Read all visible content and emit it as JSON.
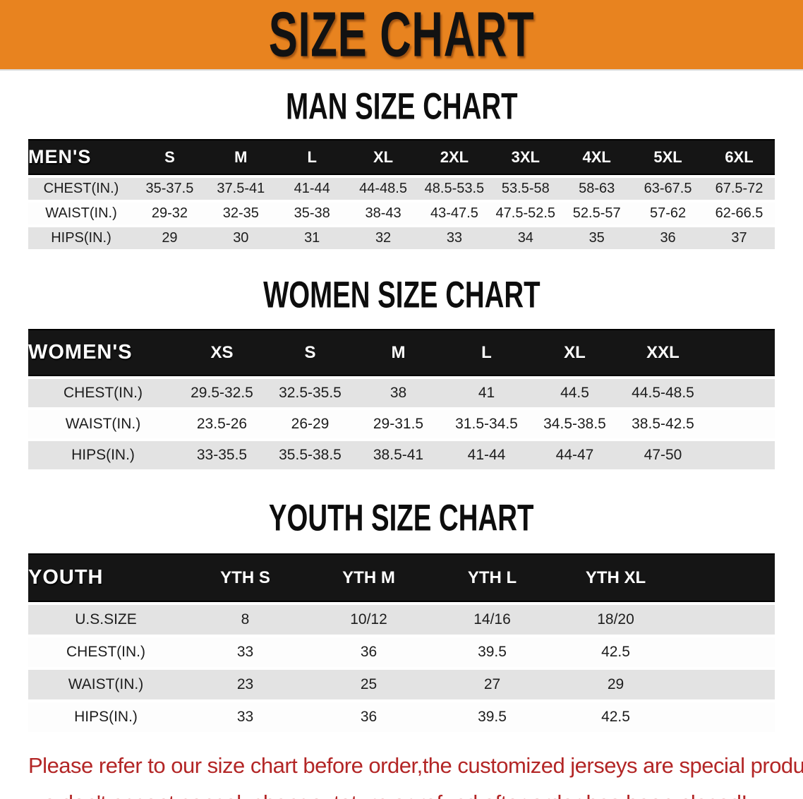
{
  "banner": {
    "title": "SIZE CHART",
    "bg_color": "#E8831F"
  },
  "men": {
    "heading": "MAN SIZE CHART",
    "label": "MEN'S",
    "columns": [
      "S",
      "M",
      "L",
      "XL",
      "2XL",
      "3XL",
      "4XL",
      "5XL",
      "6XL"
    ],
    "rows": [
      {
        "label": "CHEST(IN.)",
        "values": [
          "35-37.5",
          "37.5-41",
          "41-44",
          "44-48.5",
          "48.5-53.5",
          "53.5-58",
          "58-63",
          "63-67.5",
          "67.5-72"
        ]
      },
      {
        "label": "WAIST(IN.)",
        "values": [
          "29-32",
          "32-35",
          "35-38",
          "38-43",
          "43-47.5",
          "47.5-52.5",
          "52.5-57",
          "57-62",
          "62-66.5"
        ]
      },
      {
        "label": "HIPS(IN.)",
        "values": [
          "29",
          "30",
          "31",
          "32",
          "33",
          "34",
          "35",
          "36",
          "37"
        ]
      }
    ]
  },
  "women": {
    "heading": "WOMEN SIZE CHART",
    "label": "WOMEN'S",
    "columns": [
      "XS",
      "S",
      "M",
      "L",
      "XL",
      "XXL"
    ],
    "rows": [
      {
        "label": "CHEST(IN.)",
        "values": [
          "29.5-32.5",
          "32.5-35.5",
          "38",
          "41",
          "44.5",
          "44.5-48.5"
        ]
      },
      {
        "label": "WAIST(IN.)",
        "values": [
          "23.5-26",
          "26-29",
          "29-31.5",
          "31.5-34.5",
          "34.5-38.5",
          "38.5-42.5"
        ]
      },
      {
        "label": "HIPS(IN.)",
        "values": [
          "33-35.5",
          "35.5-38.5",
          "38.5-41",
          "41-44",
          "44-47",
          "47-50"
        ]
      }
    ]
  },
  "youth": {
    "heading": "YOUTH SIZE CHART",
    "label": "YOUTH",
    "columns": [
      "YTH S",
      "YTH M",
      "YTH L",
      "YTH XL"
    ],
    "rows": [
      {
        "label": "U.S.SIZE",
        "values": [
          "8",
          "10/12",
          "14/16",
          "18/20"
        ]
      },
      {
        "label": "CHEST(IN.)",
        "values": [
          "33",
          "36",
          "39.5",
          "42.5"
        ]
      },
      {
        "label": "WAIST(IN.)",
        "values": [
          "23",
          "25",
          "27",
          "29"
        ]
      },
      {
        "label": "HIPS(IN.)",
        "values": [
          "33",
          "36",
          "39.5",
          "42.5"
        ]
      }
    ]
  },
  "disclaimer": {
    "line1": "Please refer to our size chart before order,the customized jerseys are special products,",
    "line2": "we don't accept cancel, change, teturn or refund after order has been placed!",
    "color": "#B32626"
  }
}
